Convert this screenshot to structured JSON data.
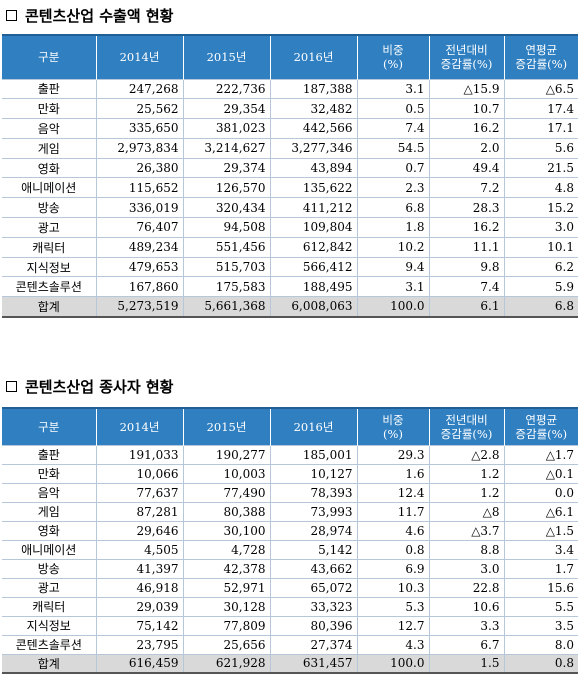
{
  "export": {
    "title": "콘텐츠산업 수출액 현황",
    "headers": [
      "구분",
      "2014년",
      "2015년",
      "2016년",
      [
        "비중",
        "(%)"
      ],
      [
        "전년대비",
        "증감률(%)"
      ],
      [
        "연평균",
        "증감률(%)"
      ]
    ],
    "rows": [
      [
        "출판",
        "247,268",
        "222,736",
        "187,388",
        "3.1",
        "△15.9",
        "△6.5"
      ],
      [
        "만화",
        "25,562",
        "29,354",
        "32,482",
        "0.5",
        "10.7",
        "17.4"
      ],
      [
        "음악",
        "335,650",
        "381,023",
        "442,566",
        "7.4",
        "16.2",
        "17.1"
      ],
      [
        "게임",
        "2,973,834",
        "3,214,627",
        "3,277,346",
        "54.5",
        "2.0",
        "5.6"
      ],
      [
        "영화",
        "26,380",
        "29,374",
        "43,894",
        "0.7",
        "49.4",
        "21.5"
      ],
      [
        "애니메이션",
        "115,652",
        "126,570",
        "135,622",
        "2.3",
        "7.2",
        "4.8"
      ],
      [
        "방송",
        "336,019",
        "320,434",
        "411,212",
        "6.8",
        "28.3",
        "15.2"
      ],
      [
        "광고",
        "76,407",
        "94,508",
        "109,804",
        "1.8",
        "16.2",
        "3.0"
      ],
      [
        "캐릭터",
        "489,234",
        "551,456",
        "612,842",
        "10.2",
        "11.1",
        "10.1"
      ],
      [
        "지식정보",
        "479,653",
        "515,703",
        "566,412",
        "9.4",
        "9.8",
        "6.2"
      ],
      [
        "콘텐츠솔루션",
        "167,860",
        "175,583",
        "188,495",
        "3.1",
        "7.4",
        "5.9"
      ],
      [
        "합계",
        "5,273,519",
        "5,661,368",
        "6,008,063",
        "100.0",
        "6.1",
        "6.8"
      ]
    ]
  },
  "employment": {
    "title": "콘텐츠산업 종사자 현황",
    "headers": [
      "구분",
      "2014년",
      "2015년",
      "2016년",
      [
        "비중",
        "(%)"
      ],
      [
        "전년대비",
        "증감률(%)"
      ],
      [
        "연평균",
        "증감률(%)"
      ]
    ],
    "rows": [
      [
        "출판",
        "191,033",
        "190,277",
        "185,001",
        "29.3",
        "△2.8",
        "△1.7"
      ],
      [
        "만화",
        "10,066",
        "10,003",
        "10,127",
        "1.6",
        "1.2",
        "△0.1"
      ],
      [
        "음악",
        "77,637",
        "77,490",
        "78,393",
        "12.4",
        "1.2",
        "0.0"
      ],
      [
        "게임",
        "87,281",
        "80,388",
        "73,993",
        "11.7",
        "△8",
        "△6.1"
      ],
      [
        "영화",
        "29,646",
        "30,100",
        "28,974",
        "4.6",
        "△3.7",
        "△1.5"
      ],
      [
        "애니메이션",
        "4,505",
        "4,728",
        "5,142",
        "0.8",
        "8.8",
        "3.4"
      ],
      [
        "방송",
        "41,397",
        "42,378",
        "43,662",
        "6.9",
        "3.0",
        "1.7"
      ],
      [
        "광고",
        "46,918",
        "52,971",
        "65,072",
        "10.3",
        "22.8",
        "15.6"
      ],
      [
        "캐릭터",
        "29,039",
        "30,128",
        "33,323",
        "5.3",
        "10.6",
        "5.5"
      ],
      [
        "지식정보",
        "75,142",
        "77,809",
        "80,396",
        "12.7",
        "3.3",
        "3.5"
      ],
      [
        "콘텐츠솔루션",
        "23,795",
        "25,656",
        "27,374",
        "4.3",
        "6.7",
        "8.0"
      ],
      [
        "합계",
        "616,459",
        "621,928",
        "631,457",
        "100.0",
        "1.5",
        "0.8"
      ]
    ]
  }
}
